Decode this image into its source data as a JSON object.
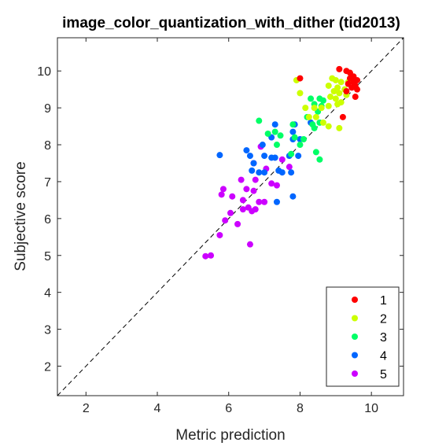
{
  "chart_data": {
    "type": "scatter",
    "title": "image_color_quantization_with_dither (tid2013)",
    "xlabel": "Metric prediction",
    "ylabel": "Subjective score",
    "xlim": [
      1.2,
      10.9
    ],
    "ylim": [
      1.2,
      10.9
    ],
    "xticks": [
      2,
      4,
      6,
      8,
      10
    ],
    "yticks": [
      2,
      3,
      4,
      5,
      6,
      7,
      8,
      9,
      10
    ],
    "grid": false,
    "reference_line": "dashed diagonal y = x",
    "legend_position": "bottom-right",
    "series": [
      {
        "name": "1",
        "color": "#ff0000",
        "points": [
          [
            9.1,
            10.05
          ],
          [
            9.3,
            10.0
          ],
          [
            9.4,
            9.95
          ],
          [
            9.5,
            9.85
          ],
          [
            9.4,
            9.8
          ],
          [
            9.6,
            9.75
          ],
          [
            9.5,
            9.7
          ],
          [
            9.35,
            9.65
          ],
          [
            9.55,
            9.6
          ],
          [
            9.45,
            9.55
          ],
          [
            9.6,
            9.5
          ],
          [
            9.3,
            9.45
          ],
          [
            9.55,
            9.3
          ],
          [
            8.0,
            9.8
          ],
          [
            9.2,
            8.75
          ]
        ]
      },
      {
        "name": "2",
        "color": "#ccff00",
        "points": [
          [
            7.9,
            9.75
          ],
          [
            8.9,
            9.8
          ],
          [
            9.0,
            9.75
          ],
          [
            9.15,
            9.7
          ],
          [
            8.8,
            9.6
          ],
          [
            9.05,
            9.55
          ],
          [
            9.25,
            9.5
          ],
          [
            8.95,
            9.45
          ],
          [
            9.1,
            9.4
          ],
          [
            9.3,
            9.35
          ],
          [
            8.85,
            9.3
          ],
          [
            9.0,
            9.25
          ],
          [
            9.15,
            9.15
          ],
          [
            9.05,
            9.1
          ],
          [
            8.8,
            9.05
          ],
          [
            8.6,
            9.0
          ],
          [
            8.4,
            9.0
          ],
          [
            8.15,
            9.0
          ],
          [
            8.45,
            8.75
          ],
          [
            8.25,
            8.75
          ],
          [
            8.65,
            8.6
          ],
          [
            8.8,
            8.5
          ],
          [
            9.1,
            8.45
          ],
          [
            8.0,
            9.4
          ],
          [
            9.35,
            9.7
          ]
        ]
      },
      {
        "name": "3",
        "color": "#00ff66",
        "points": [
          [
            8.3,
            9.25
          ],
          [
            8.55,
            9.25
          ],
          [
            8.65,
            9.2
          ],
          [
            8.4,
            9.1
          ],
          [
            8.6,
            9.05
          ],
          [
            8.5,
            8.9
          ],
          [
            8.2,
            8.75
          ],
          [
            8.55,
            8.6
          ],
          [
            8.35,
            8.55
          ],
          [
            8.4,
            8.45
          ],
          [
            7.8,
            8.55
          ],
          [
            6.85,
            8.65
          ],
          [
            7.3,
            8.35
          ],
          [
            7.1,
            8.3
          ],
          [
            7.45,
            8.25
          ],
          [
            7.85,
            8.2
          ],
          [
            8.1,
            8.15
          ],
          [
            8.0,
            8.0
          ],
          [
            7.35,
            8.0
          ],
          [
            7.75,
            7.75
          ],
          [
            8.45,
            7.8
          ],
          [
            8.55,
            7.6
          ]
        ]
      },
      {
        "name": "4",
        "color": "#0066ff",
        "points": [
          [
            7.3,
            8.55
          ],
          [
            7.85,
            8.55
          ],
          [
            8.3,
            8.6
          ],
          [
            7.2,
            8.2
          ],
          [
            7.8,
            8.35
          ],
          [
            7.8,
            8.15
          ],
          [
            8.0,
            8.15
          ],
          [
            6.95,
            8.0
          ],
          [
            6.5,
            7.85
          ],
          [
            6.6,
            7.7
          ],
          [
            7.0,
            7.7
          ],
          [
            7.2,
            7.65
          ],
          [
            7.3,
            7.65
          ],
          [
            7.7,
            7.7
          ],
          [
            7.95,
            7.7
          ],
          [
            5.75,
            7.72
          ],
          [
            6.7,
            7.5
          ],
          [
            6.65,
            7.3
          ],
          [
            6.85,
            7.25
          ],
          [
            7.0,
            7.25
          ],
          [
            7.4,
            7.3
          ],
          [
            7.5,
            7.25
          ],
          [
            7.75,
            7.25
          ],
          [
            7.8,
            6.6
          ],
          [
            7.35,
            6.45
          ]
        ]
      },
      {
        "name": "5",
        "color": "#cc00ff",
        "points": [
          [
            6.9,
            7.95
          ],
          [
            6.7,
            7.5
          ],
          [
            7.5,
            7.6
          ],
          [
            7.7,
            7.4
          ],
          [
            7.05,
            7.35
          ],
          [
            6.75,
            7.05
          ],
          [
            7.2,
            6.95
          ],
          [
            6.35,
            7.05
          ],
          [
            7.35,
            6.9
          ],
          [
            6.7,
            6.75
          ],
          [
            5.85,
            6.8
          ],
          [
            6.5,
            6.8
          ],
          [
            5.8,
            6.65
          ],
          [
            6.1,
            6.6
          ],
          [
            6.4,
            6.5
          ],
          [
            6.55,
            6.3
          ],
          [
            6.75,
            6.25
          ],
          [
            6.4,
            6.25
          ],
          [
            6.65,
            6.2
          ],
          [
            6.05,
            6.15
          ],
          [
            5.9,
            5.95
          ],
          [
            7.0,
            6.45
          ],
          [
            6.25,
            5.85
          ],
          [
            5.75,
            5.55
          ],
          [
            6.6,
            5.3
          ],
          [
            5.5,
            5.0
          ],
          [
            5.35,
            4.98
          ],
          [
            6.85,
            6.45
          ]
        ]
      }
    ]
  }
}
